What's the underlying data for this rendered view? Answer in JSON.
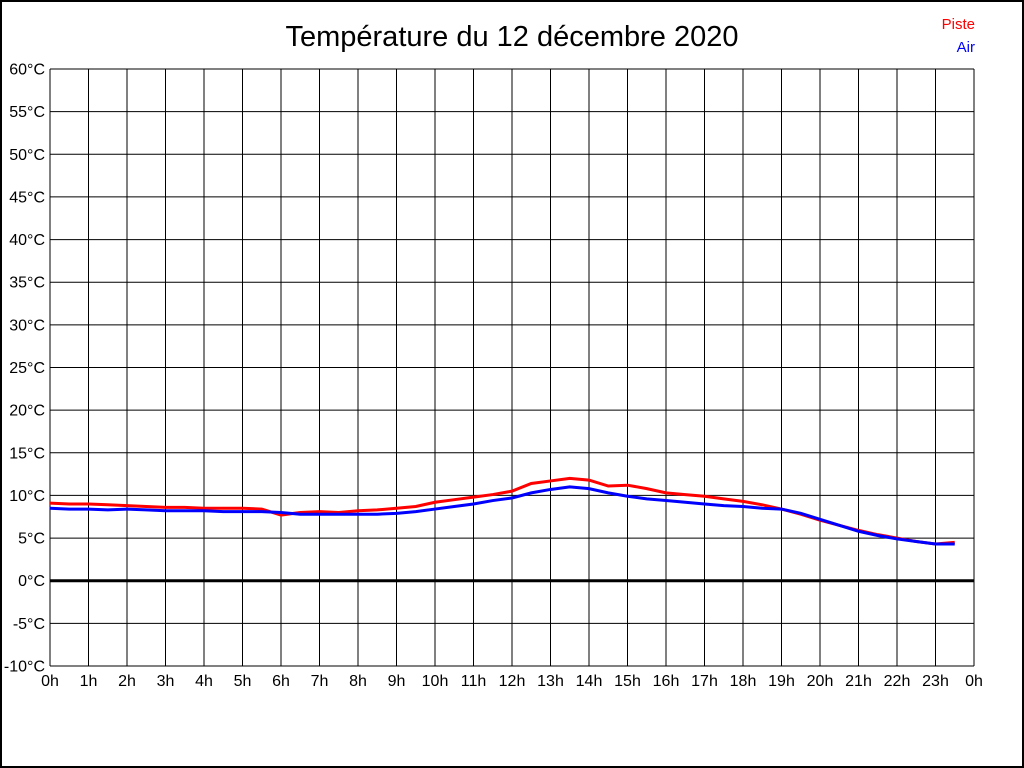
{
  "title": "Température du 12 décembre 2020",
  "legend": [
    {
      "label": "Piste",
      "color": "#ff0000"
    },
    {
      "label": "Air",
      "color": "#0000ff"
    }
  ],
  "chart_data": {
    "type": "line",
    "title": "Température du 12 décembre 2020",
    "xlabel": "",
    "ylabel": "",
    "xlim": [
      0,
      24
    ],
    "ylim": [
      -10,
      60
    ],
    "y_tick_step": 5,
    "grid": true,
    "zero_line_value": 0,
    "legend_position": "top-right",
    "x_tick_labels": [
      "0h",
      "1h",
      "2h",
      "3h",
      "4h",
      "5h",
      "6h",
      "7h",
      "8h",
      "9h",
      "10h",
      "11h",
      "12h",
      "13h",
      "14h",
      "15h",
      "16h",
      "17h",
      "18h",
      "19h",
      "20h",
      "21h",
      "22h",
      "23h",
      "0h"
    ],
    "y_tick_labels": [
      "60°C",
      "55°C",
      "50°C",
      "45°C",
      "40°C",
      "35°C",
      "30°C",
      "25°C",
      "20°C",
      "15°C",
      "10°C",
      "5°C",
      "0°C",
      "-5°C",
      "-10°C"
    ],
    "x": [
      0,
      0.5,
      1,
      1.5,
      2,
      2.5,
      3,
      3.5,
      4,
      4.5,
      5,
      5.5,
      6,
      6.5,
      7,
      7.5,
      8,
      8.5,
      9,
      9.5,
      10,
      10.5,
      11,
      11.5,
      12,
      12.5,
      13,
      13.5,
      14,
      14.5,
      15,
      15.5,
      16,
      16.5,
      17,
      17.5,
      18,
      18.5,
      19,
      19.5,
      20,
      20.5,
      21,
      21.5,
      22,
      22.5,
      23,
      23.5
    ],
    "series": [
      {
        "name": "Piste",
        "color": "#ff0000",
        "values": [
          9.1,
          9.0,
          9.0,
          8.9,
          8.8,
          8.7,
          8.6,
          8.6,
          8.5,
          8.5,
          8.5,
          8.4,
          7.7,
          8.0,
          8.1,
          8.0,
          8.2,
          8.3,
          8.5,
          8.7,
          9.2,
          9.5,
          9.8,
          10.1,
          10.5,
          11.4,
          11.7,
          12.0,
          11.8,
          11.1,
          11.2,
          10.8,
          10.3,
          10.1,
          9.9,
          9.6,
          9.3,
          8.9,
          8.4,
          7.8,
          7.1,
          6.5,
          5.9,
          5.4,
          5.0,
          4.6,
          4.3,
          4.5
        ]
      },
      {
        "name": "Air",
        "color": "#0000ff",
        "values": [
          8.5,
          8.4,
          8.4,
          8.3,
          8.4,
          8.3,
          8.2,
          8.2,
          8.2,
          8.1,
          8.1,
          8.1,
          8.0,
          7.8,
          7.8,
          7.8,
          7.8,
          7.8,
          7.9,
          8.1,
          8.4,
          8.7,
          9.0,
          9.4,
          9.7,
          10.3,
          10.7,
          11.0,
          10.8,
          10.3,
          9.9,
          9.6,
          9.4,
          9.2,
          9.0,
          8.8,
          8.7,
          8.5,
          8.4,
          7.9,
          7.2,
          6.5,
          5.8,
          5.3,
          4.9,
          4.6,
          4.3,
          4.3
        ]
      }
    ]
  }
}
